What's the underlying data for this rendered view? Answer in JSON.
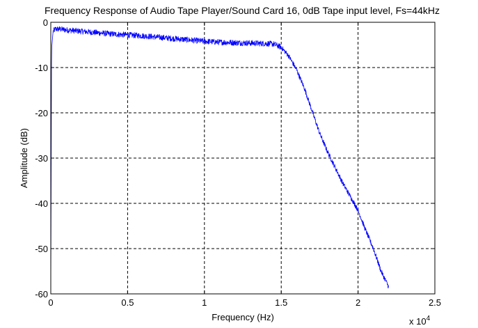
{
  "chart_data": {
    "type": "line",
    "title": "Frequency Response of Audio Tape Player/Sound Card 16, 0dB Tape input level, Fs=44kHz",
    "xlabel": "Frequency (Hz)",
    "ylabel": "Amplitude (dB)",
    "x_exponent_label": "x 10",
    "x_exponent_power": "4",
    "xlim": [
      0,
      25000
    ],
    "ylim": [
      -60,
      0
    ],
    "grid": true,
    "line_color": "#0000ff",
    "x_ticks": [
      {
        "value": 0,
        "label": "0"
      },
      {
        "value": 5000,
        "label": "0.5"
      },
      {
        "value": 10000,
        "label": "1"
      },
      {
        "value": 15000,
        "label": "1.5"
      },
      {
        "value": 20000,
        "label": "2"
      },
      {
        "value": 25000,
        "label": "2.5"
      }
    ],
    "y_ticks": [
      {
        "value": 0,
        "label": "0"
      },
      {
        "value": -10,
        "label": "-10"
      },
      {
        "value": -20,
        "label": "-20"
      },
      {
        "value": -30,
        "label": "-30"
      },
      {
        "value": -40,
        "label": "-40"
      },
      {
        "value": -50,
        "label": "-50"
      },
      {
        "value": -60,
        "label": "-60"
      }
    ],
    "series": [
      {
        "x": [
          0,
          50,
          150,
          300,
          600,
          1000,
          2000,
          3000,
          4000,
          5000,
          6000,
          7000,
          8000,
          9000,
          10000,
          11000,
          12000,
          13000,
          14000,
          14500,
          15000,
          15500,
          16000,
          16500,
          17000,
          17500,
          18000,
          18500,
          19000,
          19500,
          20000,
          20500,
          21000,
          21500,
          22000
        ],
        "y": [
          -60,
          -6,
          -2,
          -1.5,
          -1.5,
          -1.7,
          -2.0,
          -2.3,
          -2.6,
          -2.8,
          -3.0,
          -3.3,
          -3.6,
          -3.9,
          -4.2,
          -4.4,
          -4.5,
          -4.6,
          -4.7,
          -4.8,
          -5.5,
          -7.5,
          -10.5,
          -14.5,
          -19.5,
          -24.5,
          -28.5,
          -32.0,
          -35.5,
          -38.5,
          -41.5,
          -46.0,
          -50.0,
          -55.0,
          -58.5
        ]
      }
    ]
  }
}
